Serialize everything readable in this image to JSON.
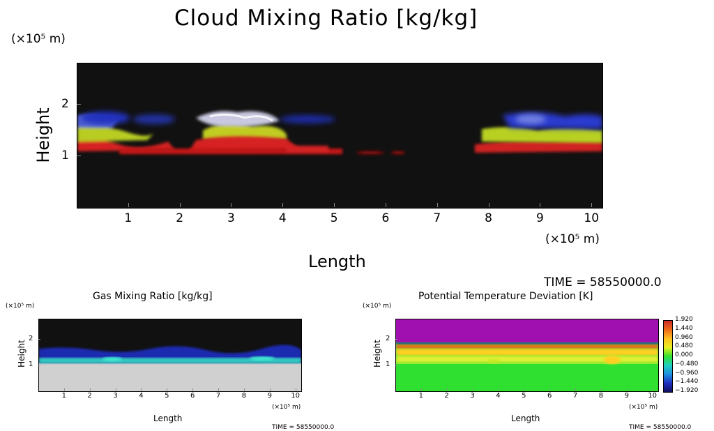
{
  "chart_data": [
    {
      "type": "heatmap",
      "title": "Cloud Mixing Ratio [kg/kg]",
      "xlabel": "Length",
      "ylabel": "Height",
      "x_unit": "(×10⁵ m)",
      "y_unit": "(×10⁵ m)",
      "xticks": [
        "1",
        "2",
        "3",
        "4",
        "5",
        "6",
        "7",
        "8",
        "9",
        "10"
      ],
      "yticks": [
        "1",
        "2"
      ],
      "xlim": [
        0,
        10.2
      ],
      "ylim": [
        0,
        2.8
      ],
      "time_label": "TIME = 58550000.0",
      "background": "#111111",
      "features": [
        {
          "x_range": [
            0,
            1.5
          ],
          "y_range": [
            1.2,
            1.9
          ],
          "color": "#d62020"
        },
        {
          "x_range": [
            1.2,
            5.0
          ],
          "y_range": [
            1.1,
            1.25
          ],
          "color": "#d62020"
        },
        {
          "x_range": [
            2.4,
            4.0
          ],
          "y_range": [
            1.3,
            2.0
          ],
          "color": "#e8e0ff"
        },
        {
          "x_range": [
            7.8,
            10.2
          ],
          "y_range": [
            1.1,
            1.9
          ],
          "color": "#b0d020"
        },
        {
          "x_range": [
            8.5,
            10.2
          ],
          "y_range": [
            1.7,
            2.0
          ],
          "color": "#2030d0"
        }
      ]
    },
    {
      "type": "heatmap",
      "title": "Gas Mixing Ratio [kg/kg]",
      "xlabel": "Length",
      "ylabel": "Height",
      "x_unit": "(×10⁵ m)",
      "y_unit": "(×10⁵ m)",
      "xticks": [
        "1",
        "2",
        "3",
        "4",
        "5",
        "6",
        "7",
        "8",
        "9",
        "10"
      ],
      "yticks": [
        "1",
        "2"
      ],
      "xlim": [
        0,
        10.2
      ],
      "ylim": [
        0,
        2.8
      ],
      "time_label": "TIME = 58550000.0",
      "background": "#111111",
      "lower_fill": "#d0d0d0",
      "layer_top": 1.2
    },
    {
      "type": "heatmap",
      "title": "Potential Temperature Deviation [K]",
      "xlabel": "Length",
      "ylabel": "Height",
      "x_unit": "(×10⁵ m)",
      "y_unit": "(×10⁵ m)",
      "xticks": [
        "1",
        "2",
        "3",
        "4",
        "5",
        "6",
        "7",
        "8",
        "9",
        "10"
      ],
      "yticks": [
        "1",
        "2"
      ],
      "xlim": [
        0,
        10.2
      ],
      "ylim": [
        0,
        2.8
      ],
      "time_label": "TIME = 58550000.0",
      "colorbar": {
        "labels": [
          "1.920",
          "1.440",
          "0.960",
          "0.480",
          "0.000",
          "−0.480",
          "−0.960",
          "−1.440",
          "−1.920"
        ],
        "colors": [
          "#cc2a2a",
          "#ee6a1a",
          "#ffc020",
          "#e8f020",
          "#30e030",
          "#20d0c0",
          "#2090e0",
          "#2030c0",
          "#101060"
        ]
      }
    }
  ]
}
